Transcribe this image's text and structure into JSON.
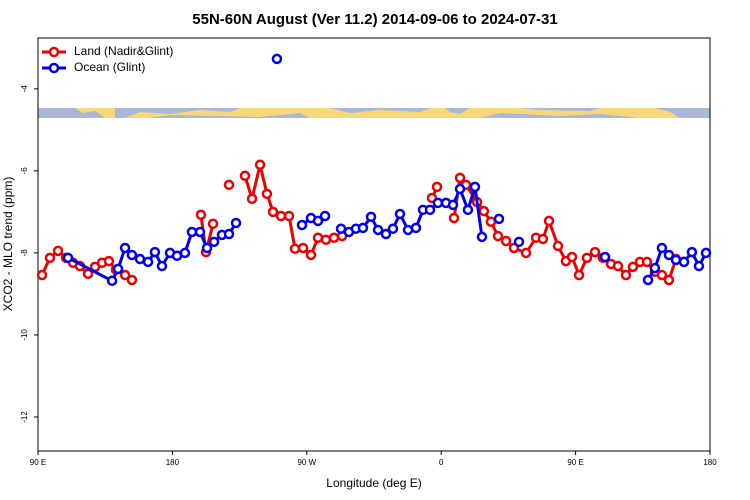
{
  "chart_data": {
    "type": "line",
    "title": "55N-60N August (Ver 11.2)   2014-09-06 to 2024-07-31",
    "x_label": "Longitude (deg E)",
    "y_label": "XCO2 - MLO trend (ppm)",
    "xlim": [
      90,
      540
    ],
    "ylim": [
      -12.83,
      -2.76
    ],
    "xticks": [
      {
        "value": 90,
        "label": "90 E"
      },
      180,
      {
        "value": 270,
        "label": "90 W"
      },
      {
        "value": 360,
        "label": "0"
      },
      {
        "value": 450,
        "label": "90 E"
      },
      {
        "value": 540,
        "label": "180"
      }
    ],
    "yticks": [
      -12,
      -10,
      -8,
      -6,
      -4
    ],
    "legend": "top-left",
    "series": [
      {
        "name": "Land (Nadir&Glint)",
        "color": "#ee0000",
        "x": [
          92.7,
          98.0,
          103.4,
          108.8,
          113.4,
          118.1,
          123.5,
          128.2,
          132.9,
          137.5,
          142.2,
          148.3,
          152.9,
          null,
          199.1,
          202.5,
          207.2,
          null,
          217.9,
          null,
          228.6,
          233.3,
          238.7,
          243.3,
          247.4,
          252.7,
          258.1,
          262.1,
          267.5,
          272.8,
          277.5,
          282.8,
          288.2,
          293.6,
          null,
          353.8,
          357.2,
          null,
          368.6,
          372.6,
          376.6,
          384.0,
          388.6,
          393.3,
          398.0,
          403.4,
          408.7,
          416.8,
          423.5,
          428.1,
          432.2,
          438.2,
          443.5,
          447.6,
          452.3,
          457.6,
          463.0,
          468.3,
          473.7,
          478.4,
          483.7,
          488.4,
          493.1,
          497.8,
          503.1,
          507.8,
          512.5,
          517.2,
          522.6
        ],
        "values": [
          -8.54,
          -8.12,
          -7.95,
          -8.12,
          -8.24,
          -8.32,
          -8.51,
          -8.34,
          -8.24,
          -8.2,
          -8.41,
          -8.54,
          -8.66,
          null,
          -7.07,
          -7.98,
          -7.29,
          null,
          -6.34,
          null,
          -6.12,
          -6.68,
          -5.85,
          -6.56,
          -7.0,
          -7.1,
          -7.1,
          -7.9,
          -7.88,
          -8.05,
          -7.63,
          -7.68,
          -7.63,
          -7.59,
          null,
          -6.66,
          -6.39,
          null,
          -7.15,
          -6.17,
          -6.34,
          -6.76,
          -6.98,
          -7.24,
          -7.59,
          -7.71,
          -7.88,
          -8.0,
          -7.63,
          -7.66,
          -7.22,
          -7.83,
          -8.2,
          -8.1,
          -8.54,
          -8.12,
          -7.98,
          -8.12,
          -8.27,
          -8.32,
          -8.54,
          -8.34,
          -8.22,
          -8.22,
          -8.46,
          -8.54,
          -8.66,
          -8.15,
          -8.22
        ]
      },
      {
        "name": "Ocean (Glint)",
        "color": "#0000ee",
        "x": [
          110.1,
          139.6,
          143.6,
          148.3,
          152.9,
          158.3,
          163.7,
          168.3,
          173.0,
          178.4,
          183.1,
          188.4,
          193.1,
          198.5,
          203.2,
          207.9,
          213.2,
          217.9,
          222.6,
          null,
          250.0,
          null,
          266.8,
          272.8,
          277.5,
          282.2,
          null,
          292.9,
          298.2,
          302.9,
          307.6,
          313.0,
          317.7,
          323.0,
          327.7,
          332.4,
          337.8,
          343.1,
          347.8,
          352.5,
          357.8,
          363.2,
          367.9,
          372.6,
          377.9,
          382.6,
          387.3,
          null,
          398.7,
          null,
          412.1,
          null,
          469.7,
          null,
          498.5,
          503.1,
          507.8,
          512.5,
          517.2,
          522.6,
          527.9,
          532.6,
          537.3
        ],
        "values": [
          -8.12,
          -8.68,
          -8.39,
          -7.88,
          -8.05,
          -8.15,
          -8.22,
          -7.98,
          -8.32,
          -8.0,
          -8.07,
          -8.0,
          -7.49,
          -7.49,
          -7.88,
          -7.73,
          -7.56,
          -7.54,
          -7.27,
          null,
          -3.27,
          null,
          -7.32,
          -7.15,
          -7.22,
          -7.1,
          null,
          -7.41,
          -7.49,
          -7.41,
          -7.39,
          -7.12,
          -7.44,
          -7.54,
          -7.41,
          -7.05,
          -7.44,
          -7.39,
          -6.95,
          -6.95,
          -6.78,
          -6.78,
          -6.83,
          -6.44,
          -6.95,
          -6.39,
          -7.61,
          null,
          -7.17,
          null,
          -7.73,
          null,
          -8.1,
          null,
          -8.66,
          -8.37,
          -7.88,
          -8.05,
          -8.17,
          -8.22,
          -7.98,
          -8.32,
          -8.0
        ]
      }
    ]
  }
}
